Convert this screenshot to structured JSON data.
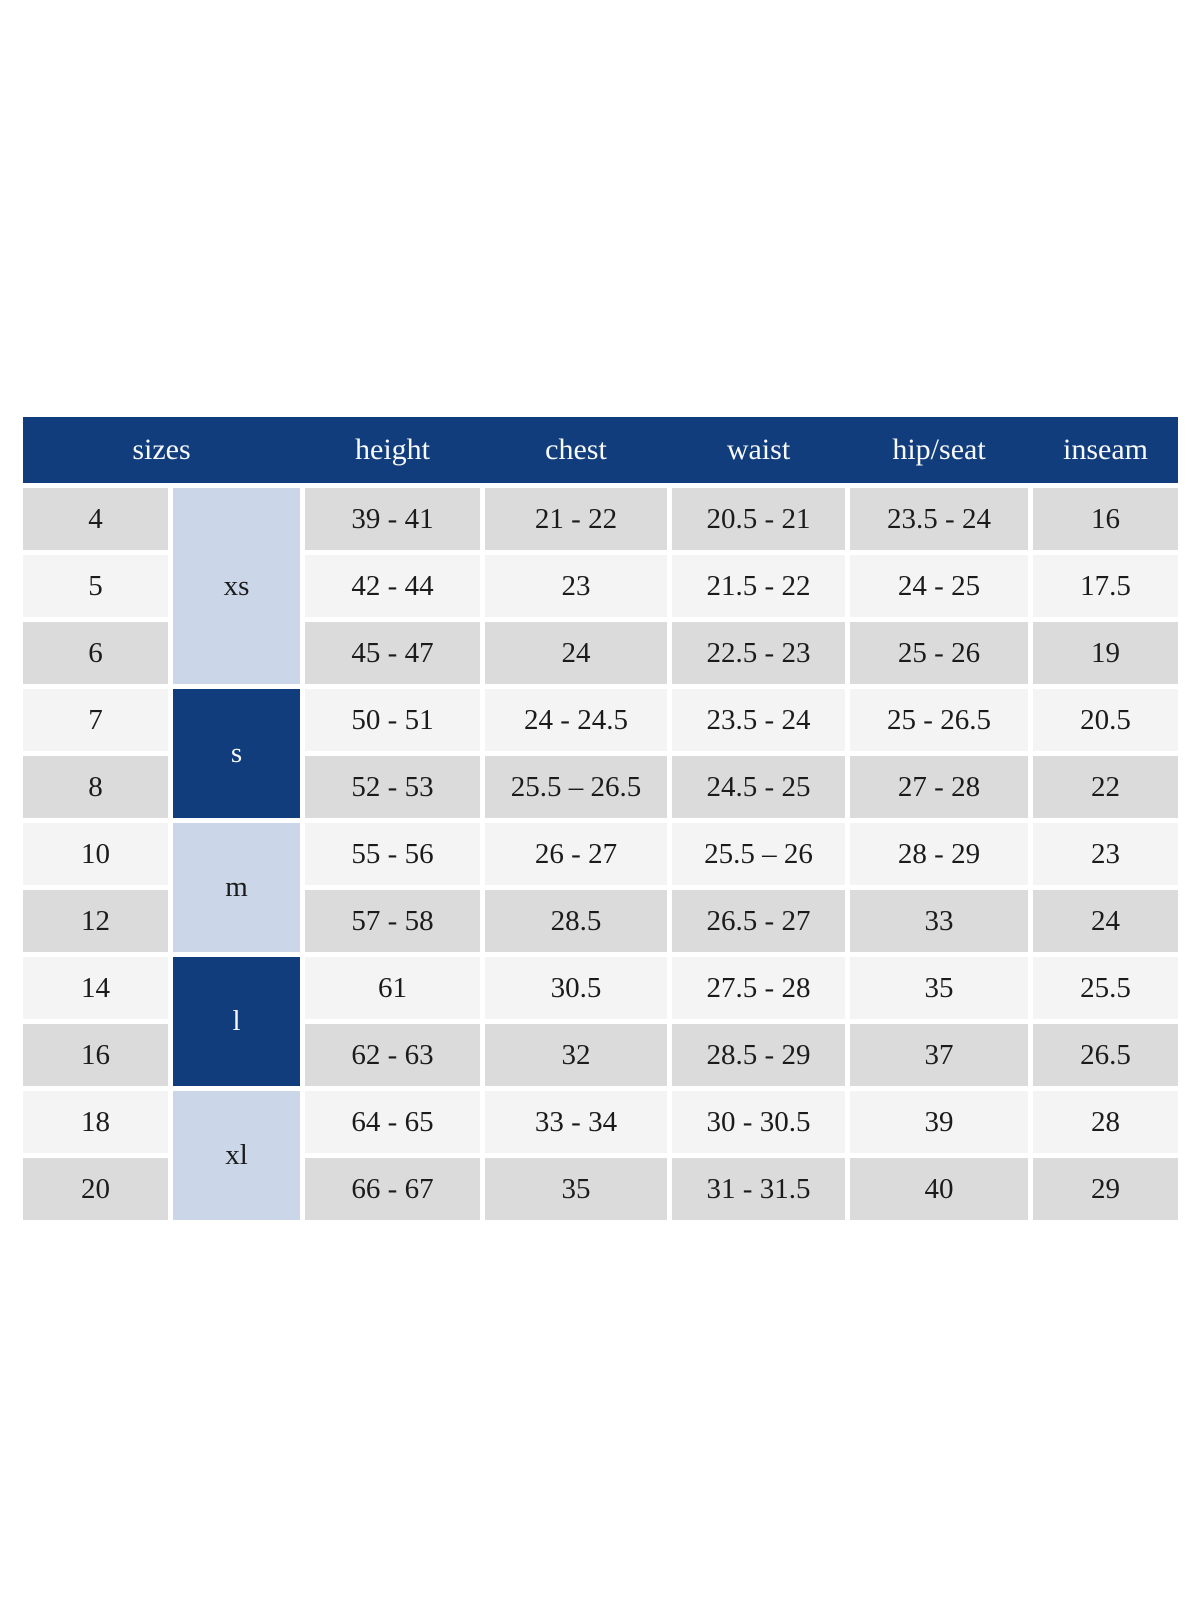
{
  "table": {
    "headers": [
      "sizes",
      "height",
      "chest",
      "waist",
      "hip/seat",
      "inseam"
    ],
    "groups": [
      {
        "label": "xs",
        "rows": 3,
        "style": "light"
      },
      {
        "label": "s",
        "rows": 2,
        "style": "dark"
      },
      {
        "label": "m",
        "rows": 2,
        "style": "light"
      },
      {
        "label": "l",
        "rows": 2,
        "style": "dark"
      },
      {
        "label": "xl",
        "rows": 2,
        "style": "light"
      }
    ],
    "rows": [
      {
        "size": "4",
        "group": "xs",
        "height": "39 - 41",
        "chest": "21 - 22",
        "waist": "20.5 - 21",
        "hip_seat": "23.5 - 24",
        "inseam": "16"
      },
      {
        "size": "5",
        "group": "xs",
        "height": "42 - 44",
        "chest": "23",
        "waist": "21.5 - 22",
        "hip_seat": "24 - 25",
        "inseam": "17.5"
      },
      {
        "size": "6",
        "group": "xs",
        "height": "45 - 47",
        "chest": "24",
        "waist": "22.5 - 23",
        "hip_seat": "25 - 26",
        "inseam": "19"
      },
      {
        "size": "7",
        "group": "s",
        "height": "50 - 51",
        "chest": "24 - 24.5",
        "waist": "23.5 - 24",
        "hip_seat": "25 - 26.5",
        "inseam": "20.5"
      },
      {
        "size": "8",
        "group": "s",
        "height": "52 - 53",
        "chest": "25.5 – 26.5",
        "waist": "24.5 - 25",
        "hip_seat": "27 - 28",
        "inseam": "22"
      },
      {
        "size": "10",
        "group": "m",
        "height": "55 - 56",
        "chest": "26 - 27",
        "waist": "25.5 – 26",
        "hip_seat": "28 - 29",
        "inseam": "23"
      },
      {
        "size": "12",
        "group": "m",
        "height": "57 - 58",
        "chest": "28.5",
        "waist": "26.5 - 27",
        "hip_seat": "33",
        "inseam": "24"
      },
      {
        "size": "14",
        "group": "l",
        "height": "61",
        "chest": "30.5",
        "waist": "27.5 - 28",
        "hip_seat": "35",
        "inseam": "25.5"
      },
      {
        "size": "16",
        "group": "l",
        "height": "62 - 63",
        "chest": "32",
        "waist": "28.5 - 29",
        "hip_seat": "37",
        "inseam": "26.5"
      },
      {
        "size": "18",
        "group": "xl",
        "height": "64 - 65",
        "chest": "33 - 34",
        "waist": "30 - 30.5",
        "hip_seat": "39",
        "inseam": "28"
      },
      {
        "size": "20",
        "group": "xl",
        "height": "66 - 67",
        "chest": "35",
        "waist": "31 - 31.5",
        "hip_seat": "40",
        "inseam": "29"
      }
    ],
    "colors": {
      "header_navy": "#123d7c",
      "group_light_blue": "#cbd7e9",
      "row_gray": "#dbdbdb",
      "row_light": "#f4f4f4",
      "text_dark": "#1b1b1b",
      "text_light": "#f8f9fb"
    }
  }
}
